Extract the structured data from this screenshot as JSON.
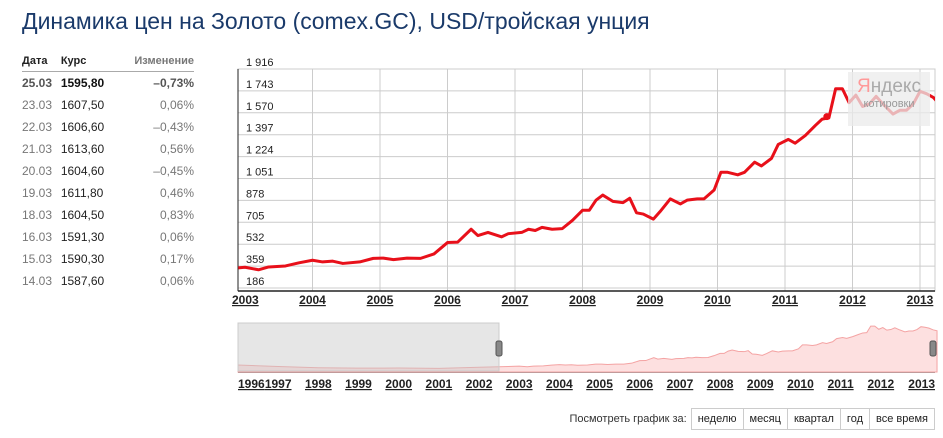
{
  "title": "Динамика цен на Золото (comex.GC), USD/тройская унция",
  "table": {
    "headers": [
      "Дата",
      "Курс",
      "Изменение"
    ],
    "rows": [
      [
        "25.03",
        "1595,80",
        "–0,73%"
      ],
      [
        "23.03",
        "1607,50",
        "0,06%"
      ],
      [
        "22.03",
        "1606,60",
        "–0,43%"
      ],
      [
        "21.03",
        "1613,60",
        "0,56%"
      ],
      [
        "20.03",
        "1604,60",
        "–0,45%"
      ],
      [
        "19.03",
        "1611,80",
        "0,46%"
      ],
      [
        "18.03",
        "1604,50",
        "0,83%"
      ],
      [
        "16.03",
        "1591,30",
        "0,06%"
      ],
      [
        "15.03",
        "1590,30",
        "0,17%"
      ],
      [
        "14.03",
        "1587,60",
        "0,06%"
      ]
    ]
  },
  "watermark": {
    "brand": "Яндекс",
    "sub": "котировки"
  },
  "footer": {
    "label": "Посмотреть график за:",
    "buttons": [
      "неделю",
      "месяц",
      "квартал",
      "год",
      "все время"
    ]
  },
  "chart_data": {
    "type": "line",
    "title": "Динамика цен на Золото (comex.GC), USD/тройская унция",
    "color": "#e8101a",
    "ylim": [
      186,
      1916
    ],
    "yticks": [
      "1 916",
      "1 743",
      "1 570",
      "1 397",
      "1 224",
      "1 051",
      "878",
      "705",
      "532",
      "359",
      "186"
    ],
    "xlim": [
      2002.9,
      2013.23
    ],
    "xticks": [
      "2003",
      "2004",
      "2005",
      "2006",
      "2007",
      "2008",
      "2009",
      "2010",
      "2011",
      "2012",
      "2013"
    ],
    "series": [
      {
        "name": "Золото",
        "points": [
          [
            2002.9,
            345
          ],
          [
            2003.0,
            350
          ],
          [
            2003.2,
            330
          ],
          [
            2003.35,
            352
          ],
          [
            2003.6,
            360
          ],
          [
            2003.8,
            385
          ],
          [
            2004.0,
            405
          ],
          [
            2004.15,
            392
          ],
          [
            2004.3,
            398
          ],
          [
            2004.45,
            380
          ],
          [
            2004.7,
            392
          ],
          [
            2004.9,
            420
          ],
          [
            2005.05,
            422
          ],
          [
            2005.2,
            410
          ],
          [
            2005.4,
            422
          ],
          [
            2005.6,
            420
          ],
          [
            2005.8,
            455
          ],
          [
            2006.0,
            545
          ],
          [
            2006.15,
            548
          ],
          [
            2006.35,
            650
          ],
          [
            2006.45,
            600
          ],
          [
            2006.6,
            625
          ],
          [
            2006.8,
            590
          ],
          [
            2006.9,
            615
          ],
          [
            2007.1,
            625
          ],
          [
            2007.2,
            650
          ],
          [
            2007.3,
            640
          ],
          [
            2007.4,
            665
          ],
          [
            2007.55,
            650
          ],
          [
            2007.7,
            655
          ],
          [
            2007.85,
            720
          ],
          [
            2008.0,
            800
          ],
          [
            2008.1,
            800
          ],
          [
            2008.2,
            880
          ],
          [
            2008.3,
            920
          ],
          [
            2008.45,
            870
          ],
          [
            2008.6,
            860
          ],
          [
            2008.7,
            895
          ],
          [
            2008.8,
            780
          ],
          [
            2008.9,
            770
          ],
          [
            2009.05,
            730
          ],
          [
            2009.15,
            790
          ],
          [
            2009.3,
            890
          ],
          [
            2009.45,
            850
          ],
          [
            2009.55,
            880
          ],
          [
            2009.7,
            890
          ],
          [
            2009.8,
            890
          ],
          [
            2009.95,
            960
          ],
          [
            2010.05,
            1100
          ],
          [
            2010.15,
            1100
          ],
          [
            2010.3,
            1080
          ],
          [
            2010.4,
            1100
          ],
          [
            2010.55,
            1180
          ],
          [
            2010.65,
            1150
          ],
          [
            2010.8,
            1210
          ],
          [
            2010.9,
            1320
          ],
          [
            2011.05,
            1360
          ],
          [
            2011.15,
            1330
          ],
          [
            2011.3,
            1390
          ],
          [
            2011.45,
            1470
          ],
          [
            2011.55,
            1520
          ],
          [
            2011.65,
            1530
          ],
          [
            2011.75,
            1760
          ],
          [
            2011.85,
            1760
          ],
          [
            2011.95,
            1650
          ],
          [
            2012.05,
            1710
          ],
          [
            2012.15,
            1620
          ],
          [
            2012.25,
            1640
          ],
          [
            2012.35,
            1700
          ],
          [
            2012.45,
            1640
          ],
          [
            2012.6,
            1560
          ],
          [
            2012.7,
            1590
          ],
          [
            2012.8,
            1590
          ],
          [
            2012.9,
            1640
          ],
          [
            2013.0,
            1740
          ],
          [
            2013.1,
            1720
          ],
          [
            2013.2,
            1690
          ],
          [
            2013.3,
            1630
          ],
          [
            2013.4,
            1596
          ]
        ]
      }
    ],
    "marker": {
      "x": 2011.62,
      "y": 1540
    },
    "navigator": {
      "xticks": [
        "1996",
        "1997",
        "1998",
        "1999",
        "2000",
        "2001",
        "2002",
        "2003",
        "2004",
        "2005",
        "2006",
        "2007",
        "2008",
        "2009",
        "2010",
        "2011",
        "2012",
        "2013"
      ],
      "selected_range": [
        "1996",
        "2003"
      ],
      "history": [
        [
          1996,
          390
        ],
        [
          1997,
          340
        ],
        [
          1998,
          295
        ],
        [
          1999,
          280
        ],
        [
          2000,
          285
        ],
        [
          2001,
          270
        ],
        [
          2002,
          310
        ]
      ]
    }
  }
}
